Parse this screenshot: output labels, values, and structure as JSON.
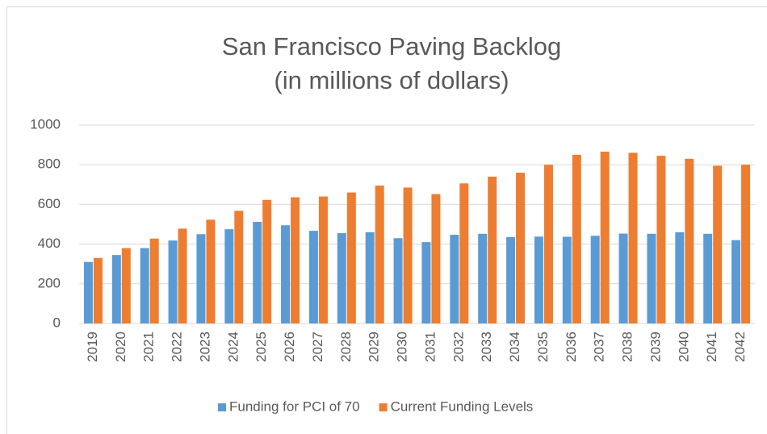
{
  "chart_data": {
    "type": "bar",
    "title": "San Francisco Paving Backlog",
    "subtitle": "(in millions of dollars)",
    "categories": [
      "2019",
      "2020",
      "2021",
      "2022",
      "2023",
      "2024",
      "2025",
      "2026",
      "2027",
      "2028",
      "2029",
      "2030",
      "2031",
      "2032",
      "2033",
      "2034",
      "2035",
      "2036",
      "2037",
      "2038",
      "2039",
      "2040",
      "2041",
      "2042"
    ],
    "series": [
      {
        "name": "Funding for PCI of 70",
        "color": "#5b9bd5",
        "values": [
          310,
          345,
          380,
          418,
          450,
          475,
          512,
          495,
          467,
          455,
          460,
          430,
          410,
          447,
          452,
          435,
          438,
          437,
          442,
          453,
          452,
          460,
          452,
          420
        ]
      },
      {
        "name": "Current Funding Levels",
        "color": "#ed7d31",
        "values": [
          330,
          380,
          428,
          478,
          523,
          568,
          623,
          636,
          640,
          660,
          695,
          685,
          652,
          706,
          740,
          760,
          800,
          850,
          866,
          860,
          845,
          830,
          795,
          800
        ]
      }
    ],
    "ylim": [
      0,
      1000
    ],
    "yticks": [
      0,
      200,
      400,
      600,
      800,
      1000
    ],
    "grid": true,
    "legend": "bottom"
  }
}
